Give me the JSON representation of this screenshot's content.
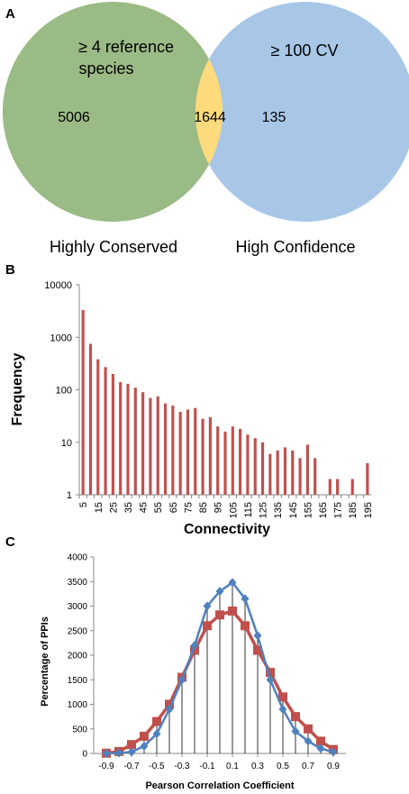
{
  "panels": [
    {
      "letter": "A"
    },
    {
      "letter": "B"
    },
    {
      "letter": "C"
    }
  ],
  "venn": {
    "left": {
      "label": "Highly Conserved",
      "criterion_line1": "≥ 4 reference",
      "criterion_line2": "species",
      "count": "5006",
      "color": "#9bbb86"
    },
    "right": {
      "label": "High Confidence",
      "criterion": "≥ 100 CV",
      "count": "135",
      "color": "#a8c7e7"
    },
    "overlap": {
      "count": "1644",
      "color": "#fddb7c"
    }
  },
  "chart_data": [
    {
      "type": "bar",
      "panel": "B",
      "xlabel": "Connectivity",
      "ylabel": "Frequency",
      "yscale": "log",
      "ylim": [
        1,
        10000
      ],
      "yticks": [
        "1",
        "10",
        "100",
        "1000",
        "10000"
      ],
      "xticks": [
        "5",
        "15",
        "25",
        "35",
        "45",
        "55",
        "65",
        "75",
        "85",
        "95",
        "105",
        "115",
        "125",
        "135",
        "145",
        "155",
        "165",
        "175",
        "185",
        "195"
      ],
      "color": "#c0504d",
      "x": [
        5,
        10,
        15,
        20,
        25,
        30,
        35,
        40,
        45,
        50,
        55,
        60,
        65,
        70,
        75,
        80,
        85,
        90,
        95,
        100,
        105,
        110,
        115,
        120,
        125,
        130,
        135,
        140,
        145,
        150,
        155,
        160,
        165,
        170,
        175,
        180,
        185,
        190,
        195
      ],
      "values": [
        3300,
        750,
        380,
        270,
        200,
        140,
        130,
        110,
        90,
        70,
        75,
        55,
        50,
        38,
        42,
        45,
        28,
        30,
        20,
        16,
        20,
        18,
        14,
        12,
        10,
        6,
        7,
        8,
        7,
        5,
        9,
        5,
        1,
        2,
        2,
        1,
        2,
        1,
        4
      ]
    },
    {
      "type": "line",
      "panel": "C",
      "xlabel": "Pearson Correlation Coefficient",
      "ylabel": "Percentage of PPIs",
      "ylim": [
        0,
        4000
      ],
      "yticks": [
        "0",
        "500",
        "1000",
        "1500",
        "2000",
        "2500",
        "3000",
        "3500",
        "4000"
      ],
      "xticks": [
        "-0.9",
        "-0.7",
        "-0.5",
        "-0.3",
        "-0.1",
        "0.1",
        "0.3",
        "0.5",
        "0.7",
        "0.9"
      ],
      "x": [
        -0.9,
        -0.8,
        -0.7,
        -0.6,
        -0.5,
        -0.4,
        -0.3,
        -0.2,
        -0.1,
        0.0,
        0.1,
        0.2,
        0.3,
        0.4,
        0.5,
        0.6,
        0.7,
        0.8,
        0.9
      ],
      "series": [
        {
          "values": [
            0,
            10,
            30,
            150,
            400,
            900,
            1500,
            2200,
            3000,
            3300,
            3480,
            3150,
            2400,
            1500,
            900,
            450,
            250,
            100,
            30
          ],
          "color": "#4f81bd",
          "marker": "diamond"
        },
        {
          "values": [
            5,
            40,
            180,
            350,
            650,
            1000,
            1550,
            2100,
            2600,
            2820,
            2900,
            2600,
            2100,
            1650,
            1150,
            750,
            500,
            250,
            80
          ],
          "color": "#c0504d",
          "marker": "square"
        }
      ]
    }
  ]
}
